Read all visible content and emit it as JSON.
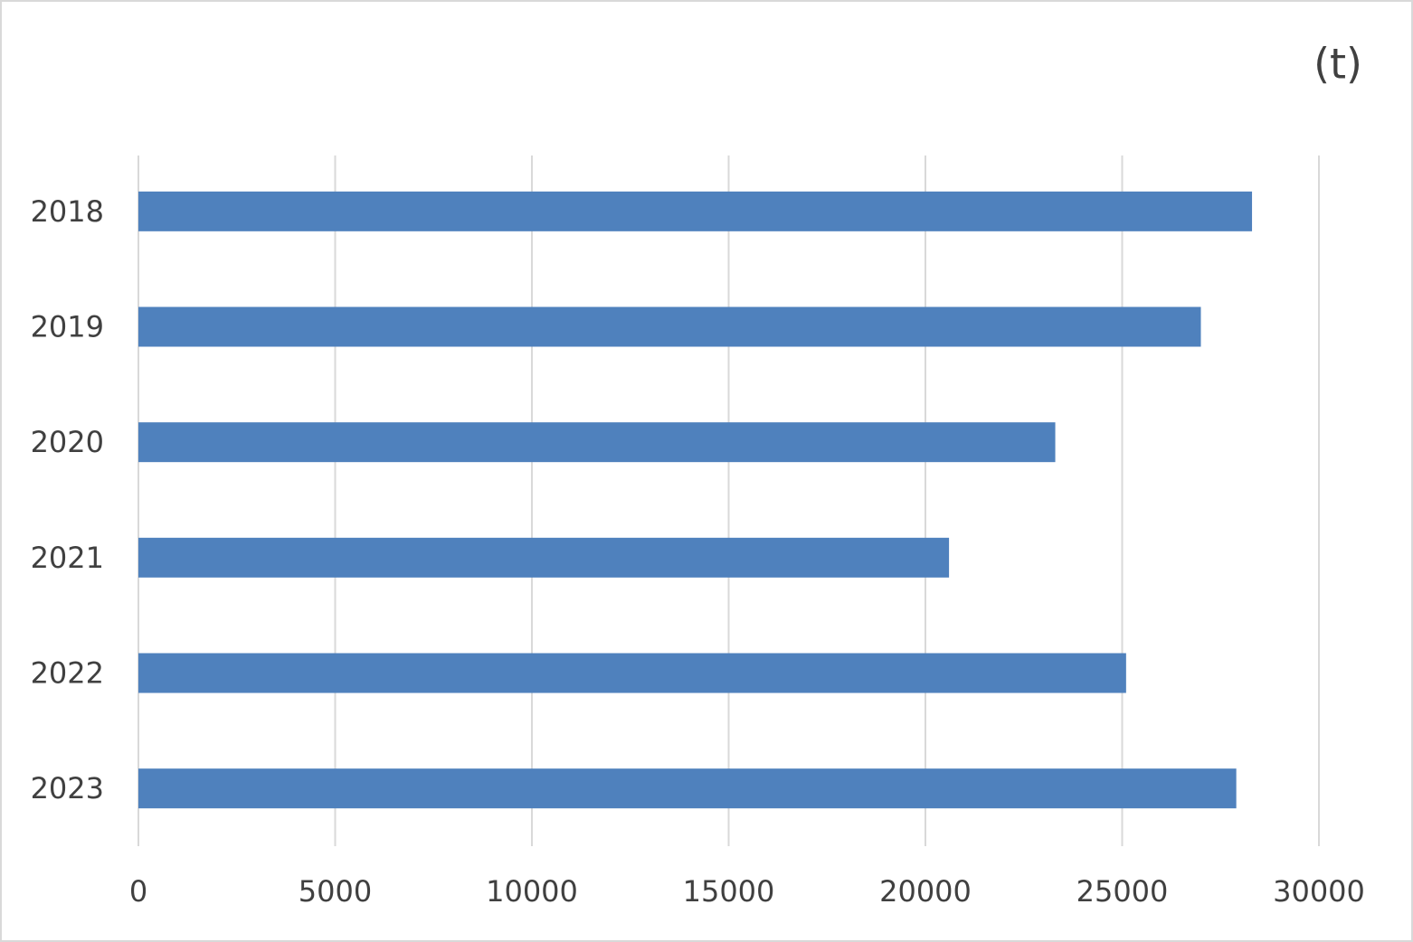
{
  "chart_data": {
    "type": "bar",
    "orientation": "horizontal",
    "unit_label": "(t)",
    "categories": [
      "2018",
      "2019",
      "2020",
      "2021",
      "2022",
      "2023"
    ],
    "values": [
      28300,
      27000,
      23300,
      20600,
      25100,
      27900
    ],
    "color": "#4f81bd",
    "xlim": [
      0,
      30000
    ],
    "xticks": [
      0,
      5000,
      10000,
      15000,
      20000,
      25000,
      30000
    ],
    "grid": true
  }
}
